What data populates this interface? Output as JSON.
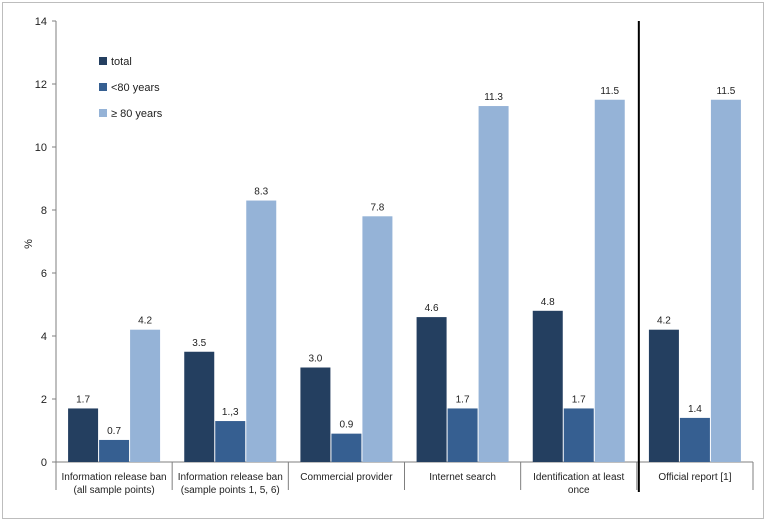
{
  "chart_data": {
    "type": "bar",
    "ylabel": "%",
    "ylim": [
      0,
      14
    ],
    "yticks": [
      "0",
      "2",
      "4",
      "6",
      "8",
      "10",
      "12",
      "14"
    ],
    "legend_position": "top-left",
    "grid": false,
    "categories": [
      [
        "Information release ban",
        "(all sample points)"
      ],
      [
        "Information release ban",
        "(sample points 1, 5, 6)"
      ],
      [
        "Commercial provider"
      ],
      [
        "Internet search"
      ],
      [
        "Identification at least",
        "once"
      ],
      [
        "Official report [1]"
      ]
    ],
    "series": [
      {
        "name": "total",
        "color": "#243f60",
        "values": [
          1.7,
          3.5,
          3.0,
          4.6,
          4.8,
          4.2
        ],
        "labels": [
          "1.7",
          "3.5",
          "3.0",
          "4.6",
          "4.8",
          "4.2"
        ]
      },
      {
        "name": "<80 years",
        "color": "#365f91",
        "values": [
          0.7,
          1.3,
          0.9,
          1.7,
          1.7,
          1.4
        ],
        "labels": [
          "0.7",
          "1.,3",
          "0.9",
          "1.7",
          "1.7",
          "1.4"
        ]
      },
      {
        "name": "≥ 80 years",
        "color": "#95b3d7",
        "values": [
          4.2,
          8.3,
          7.8,
          11.3,
          11.5,
          11.5
        ],
        "labels": [
          "4.2",
          "8.3",
          "7.8",
          "11.3",
          "11.5",
          "11.5"
        ]
      }
    ],
    "separator_after_category": 4
  }
}
